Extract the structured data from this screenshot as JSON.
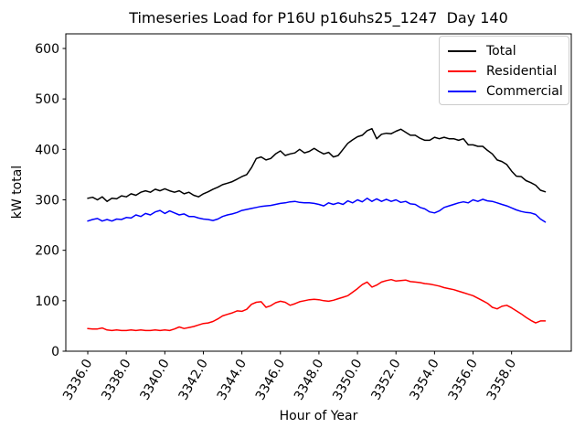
{
  "chart_data": {
    "type": "line",
    "title": "Timeseries Load for P16U p16uhs25_1247  Day 140",
    "xlabel": "Hour of Year",
    "ylabel": "kW total",
    "grid": false,
    "legend_position": "upper right",
    "xlim": [
      3334.86,
      3361.1
    ],
    "ylim": [
      0,
      629
    ],
    "xtick_values": [
      3336,
      3338,
      3340,
      3342,
      3344,
      3346,
      3348,
      3350,
      3352,
      3354,
      3356,
      3358
    ],
    "xtick_labels": [
      "3336.0",
      "3338.0",
      "3340.0",
      "3342.0",
      "3344.0",
      "3346.0",
      "3348.0",
      "3350.0",
      "3352.0",
      "3354.0",
      "3356.0",
      "3358.0"
    ],
    "ytick_values": [
      0,
      100,
      200,
      300,
      400,
      500,
      600
    ],
    "ytick_labels": [
      "0",
      "100",
      "200",
      "300",
      "400",
      "500",
      "600"
    ],
    "x_start": 3336.0,
    "x_step": 0.25,
    "n_points": 96,
    "x": [
      3336.0,
      3336.25,
      3336.5,
      3336.75,
      3337.0,
      3337.25,
      3337.5,
      3337.75,
      3338.0,
      3338.25,
      3338.5,
      3338.75,
      3339.0,
      3339.25,
      3339.5,
      3339.75,
      3340.0,
      3340.25,
      3340.5,
      3340.75,
      3341.0,
      3341.25,
      3341.5,
      3341.75,
      3342.0,
      3342.25,
      3342.5,
      3342.75,
      3343.0,
      3343.25,
      3343.5,
      3343.75,
      3344.0,
      3344.25,
      3344.5,
      3344.75,
      3345.0,
      3345.25,
      3345.5,
      3345.75,
      3346.0,
      3346.25,
      3346.5,
      3346.75,
      3347.0,
      3347.25,
      3347.5,
      3347.75,
      3348.0,
      3348.25,
      3348.5,
      3348.75,
      3349.0,
      3349.25,
      3349.5,
      3349.75,
      3350.0,
      3350.25,
      3350.5,
      3350.75,
      3351.0,
      3351.25,
      3351.5,
      3351.75,
      3352.0,
      3352.25,
      3352.5,
      3352.75,
      3353.0,
      3353.25,
      3353.5,
      3353.75,
      3354.0,
      3354.25,
      3354.5,
      3354.75,
      3355.0,
      3355.25,
      3355.5,
      3355.75,
      3356.0,
      3356.25,
      3356.5,
      3356.75,
      3357.0,
      3357.25,
      3357.5,
      3357.75,
      3358.0,
      3358.25,
      3358.5,
      3358.75,
      3359.0,
      3359.25,
      3359.5,
      3359.75
    ],
    "series": [
      {
        "name": "Total",
        "color": "#000000",
        "values": [
          303,
          305,
          300,
          306,
          297,
          303,
          302,
          308,
          306,
          312,
          309,
          315,
          318,
          315,
          321,
          318,
          322,
          318,
          315,
          318,
          312,
          315,
          309,
          306,
          312,
          316,
          321,
          325,
          330,
          333,
          336,
          341,
          346,
          350,
          364,
          382,
          385,
          379,
          382,
          391,
          397,
          388,
          391,
          393,
          400,
          393,
          396,
          402,
          396,
          391,
          394,
          385,
          388,
          400,
          412,
          419,
          425,
          428,
          437,
          441,
          421,
          430,
          432,
          431,
          436,
          440,
          434,
          428,
          428,
          422,
          418,
          418,
          424,
          421,
          424,
          421,
          421,
          418,
          421,
          409,
          409,
          406,
          406,
          398,
          391,
          379,
          376,
          370,
          357,
          347,
          346,
          338,
          334,
          329,
          319,
          316
        ]
      },
      {
        "name": "Residential",
        "color": "#ff0000",
        "values": [
          45,
          44,
          44,
          46,
          42,
          41,
          42,
          41,
          41,
          42,
          41,
          42,
          41,
          41,
          42,
          41,
          42,
          41,
          44,
          48,
          45,
          47,
          49,
          52,
          55,
          56,
          59,
          64,
          70,
          73,
          76,
          80,
          79,
          83,
          93,
          97,
          98,
          87,
          90,
          96,
          99,
          97,
          91,
          94,
          98,
          100,
          102,
          103,
          102,
          100,
          99,
          101,
          104,
          107,
          110,
          117,
          124,
          132,
          137,
          127,
          131,
          137,
          140,
          142,
          139,
          140,
          141,
          138,
          137,
          136,
          134,
          133,
          131,
          129,
          126,
          124,
          122,
          119,
          116,
          113,
          110,
          105,
          100,
          95,
          87,
          84,
          89,
          91,
          86,
          80,
          74,
          67,
          61,
          56,
          60,
          60
        ]
      },
      {
        "name": "Commercial",
        "color": "#0000ff",
        "values": [
          258,
          261,
          263,
          258,
          261,
          258,
          262,
          261,
          265,
          264,
          270,
          267,
          273,
          270,
          276,
          279,
          273,
          278,
          274,
          270,
          272,
          267,
          267,
          264,
          262,
          261,
          259,
          262,
          267,
          270,
          272,
          275,
          279,
          281,
          283,
          285,
          287,
          288,
          289,
          291,
          293,
          294,
          296,
          297,
          295,
          294,
          294,
          293,
          291,
          288,
          294,
          291,
          294,
          291,
          298,
          294,
          300,
          296,
          303,
          297,
          302,
          297,
          301,
          297,
          300,
          295,
          297,
          292,
          291,
          285,
          282,
          276,
          274,
          278,
          285,
          288,
          291,
          294,
          296,
          294,
          300,
          297,
          301,
          298,
          297,
          294,
          291,
          288,
          284,
          280,
          277,
          275,
          274,
          271,
          262,
          256
        ]
      }
    ]
  }
}
